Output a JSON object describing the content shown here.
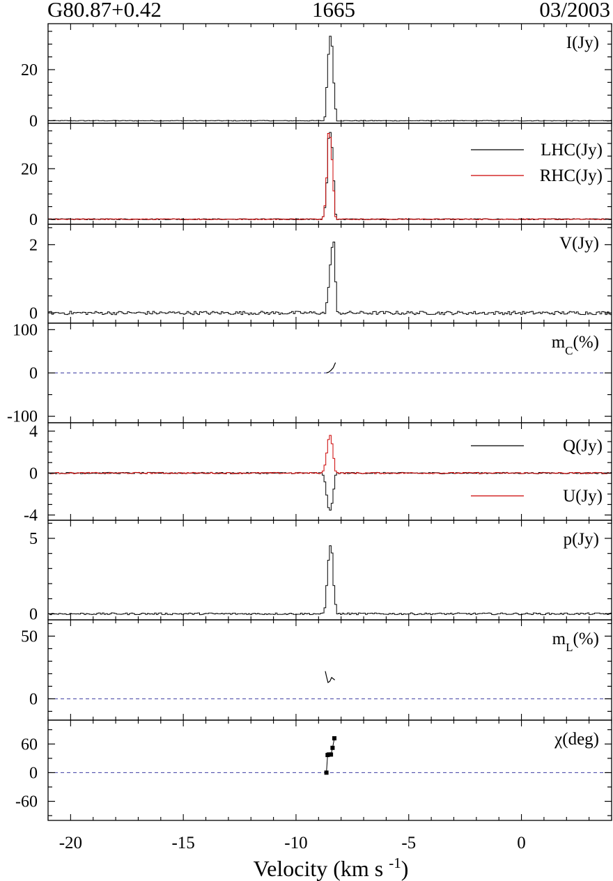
{
  "header": {
    "source": "G80.87+0.42",
    "frequency": "1665",
    "date": "03/2003"
  },
  "chart_data": {
    "type": "line",
    "xlabel": "Velocity (km s",
    "xlabel_sup": "-1",
    "xlabel_end": ")",
    "xlim": [
      -21,
      4
    ],
    "xticks": [
      -20,
      -15,
      -10,
      -5,
      0
    ],
    "xtick_labels": [
      "-20",
      "-15",
      "-10",
      "-5",
      "0"
    ],
    "colors": {
      "black": "#000000",
      "red": "#cc0000",
      "dashed": "#3a3aa0"
    },
    "panels": [
      {
        "id": "I",
        "label": "I(Jy)",
        "ylim": [
          -1,
          38
        ],
        "yticks": [
          0,
          20
        ],
        "ytick_labels": [
          "0",
          "20"
        ],
        "minor_step": 5,
        "series": [
          {
            "name": "I(Jy)",
            "color": "#000000",
            "baseline": 0,
            "noise": 0.12,
            "peak": {
              "x": [
                -8.75,
                -8.65,
                -8.55,
                -8.45,
                -8.35,
                -8.25
              ],
              "y": [
                1.5,
                18,
                34,
                31,
                13,
                1
              ]
            }
          }
        ]
      },
      {
        "id": "LR",
        "label": "",
        "ylim": [
          -2,
          38
        ],
        "yticks": [
          0,
          20
        ],
        "ytick_labels": [
          "0",
          "20"
        ],
        "minor_step": 5,
        "legend": [
          {
            "label": "LHC(Jy)",
            "color": "#000000"
          },
          {
            "label": "RHC(Jy)",
            "color": "#cc0000"
          }
        ],
        "series": [
          {
            "name": "LHC(Jy)",
            "color": "#000000",
            "baseline": 0,
            "noise": 0.18,
            "peak": {
              "x": [
                -8.8,
                -8.7,
                -8.6,
                -8.5,
                -8.4,
                -8.3
              ],
              "y": [
                1,
                10,
                32,
                35,
                24,
                2
              ]
            }
          },
          {
            "name": "RHC(Jy)",
            "color": "#cc0000",
            "baseline": 0,
            "noise": 0.18,
            "peak": {
              "x": [
                -8.8,
                -8.7,
                -8.6,
                -8.5,
                -8.4,
                -8.3
              ],
              "y": [
                1,
                12,
                34,
                32,
                18,
                1
              ]
            }
          }
        ]
      },
      {
        "id": "V",
        "label": "V(Jy)",
        "ylim": [
          -0.3,
          2.6
        ],
        "yticks": [
          0,
          2
        ],
        "ytick_labels": [
          "0",
          "2"
        ],
        "minor_step": 0.5,
        "series": [
          {
            "name": "V(Jy)",
            "color": "#000000",
            "baseline": 0,
            "noise": 0.05,
            "peak": {
              "x": [
                -8.65,
                -8.55,
                -8.45,
                -8.35,
                -8.25
              ],
              "y": [
                0.3,
                1.2,
                1.9,
                2.1,
                0.4
              ]
            }
          }
        ]
      },
      {
        "id": "mC",
        "label": "m",
        "label_sub": "C",
        "label_tail": "(%)",
        "ylim": [
          -115,
          115
        ],
        "yticks": [
          -100,
          0,
          100
        ],
        "ytick_labels": [
          "-100",
          "0",
          "100"
        ],
        "minor_step": 50,
        "dashed_zero": true,
        "curve": {
          "x": [
            -8.65,
            -8.55,
            -8.45,
            -8.35,
            -8.25
          ],
          "y": [
            0,
            2,
            6,
            12,
            24
          ]
        }
      },
      {
        "id": "QU",
        "label": "",
        "ylim": [
          -4.5,
          4.8
        ],
        "yticks": [
          -4,
          0,
          4
        ],
        "ytick_labels": [
          "-4",
          "0",
          "4"
        ],
        "minor_step": 1,
        "legend": [
          {
            "label": "Q(Jy)",
            "color": "#000000"
          },
          {
            "label": "U(Jy)",
            "color": "#cc0000"
          }
        ],
        "series": [
          {
            "name": "Q(Jy)",
            "color": "#000000",
            "baseline": 0,
            "noise": 0.06,
            "peak": {
              "x": [
                -8.8,
                -8.7,
                -8.6,
                -8.5,
                -8.4,
                -8.3
              ],
              "y": [
                -0.2,
                -1.8,
                -3.3,
                -3.6,
                -2.4,
                -0.2
              ]
            }
          },
          {
            "name": "U(Jy)",
            "color": "#cc0000",
            "baseline": 0,
            "noise": 0.06,
            "peak": {
              "x": [
                -8.8,
                -8.7,
                -8.6,
                -8.5,
                -8.4,
                -8.3
              ],
              "y": [
                0.2,
                1.6,
                3.2,
                3.7,
                2.2,
                0.2
              ]
            }
          }
        ]
      },
      {
        "id": "p",
        "label": "p(Jy)",
        "ylim": [
          -0.4,
          6.2
        ],
        "yticks": [
          0,
          5
        ],
        "ytick_labels": [
          "0",
          "5"
        ],
        "minor_step": 1,
        "series": [
          {
            "name": "p(Jy)",
            "color": "#000000",
            "baseline": 0,
            "noise": 0.06,
            "peak": {
              "x": [
                -8.75,
                -8.65,
                -8.55,
                -8.45,
                -8.35,
                -8.25
              ],
              "y": [
                0.4,
                2.5,
                4.6,
                4.3,
                1.6,
                0.2
              ]
            }
          }
        ]
      },
      {
        "id": "mL",
        "label": "m",
        "label_sub": "L",
        "label_tail": "(%)",
        "ylim": [
          -17,
          63
        ],
        "yticks": [
          0,
          50
        ],
        "ytick_labels": [
          "0",
          "50"
        ],
        "minor_step": 10,
        "dashed_zero": true,
        "curve": {
          "x": [
            -8.7,
            -8.65,
            -8.58,
            -8.5,
            -8.42,
            -8.35,
            -8.28
          ],
          "y": [
            22,
            18,
            13,
            14,
            17,
            16,
            15
          ]
        }
      },
      {
        "id": "chi",
        "label": "χ(deg)",
        "ylim": [
          -100,
          110
        ],
        "yticks": [
          -60,
          0,
          60
        ],
        "ytick_labels": [
          "-60",
          "0",
          "60"
        ],
        "minor_step": 30,
        "dashed_zero": true,
        "points": {
          "x": [
            -8.65,
            -8.6,
            -8.55,
            -8.5,
            -8.45,
            -8.38,
            -8.3
          ],
          "y": [
            0,
            37,
            38,
            38,
            38,
            52,
            72
          ]
        }
      }
    ]
  }
}
